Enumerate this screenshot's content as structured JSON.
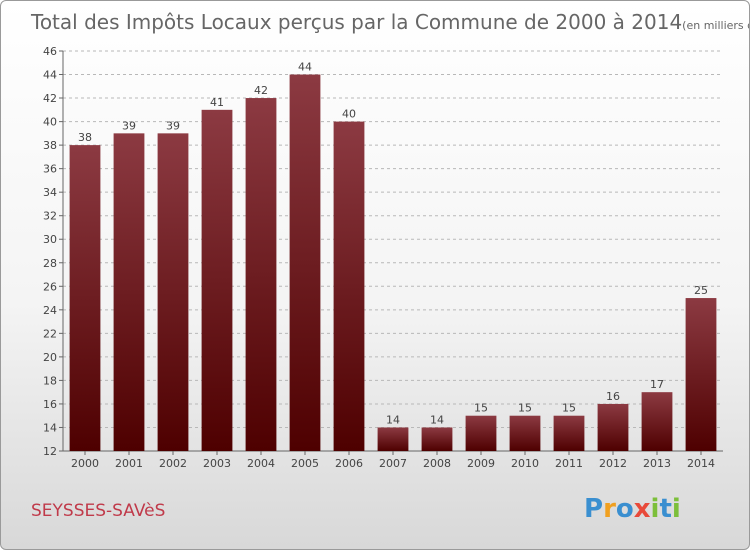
{
  "chart_data": {
    "type": "bar",
    "title": "Total des Impôts Locaux perçus par la Commune de 2000 à 2014",
    "subtitle": "(en milliers d'€)",
    "categories": [
      "2000",
      "2001",
      "2002",
      "2003",
      "2004",
      "2005",
      "2006",
      "2007",
      "2008",
      "2009",
      "2010",
      "2011",
      "2012",
      "2013",
      "2014"
    ],
    "values": [
      38,
      39,
      39,
      41,
      42,
      44,
      40,
      14,
      14,
      15,
      15,
      15,
      16,
      17,
      25
    ],
    "ylim": [
      12,
      46
    ],
    "yticks": [
      12,
      14,
      16,
      18,
      20,
      22,
      24,
      26,
      28,
      30,
      32,
      34,
      36,
      38,
      40,
      42,
      44,
      46
    ],
    "grid": "horizontal-dashed",
    "legend": "none"
  },
  "commune": "SEYSSES-SAVèS",
  "logo": {
    "text": "Proxiti",
    "letters": [
      "P",
      "r",
      "o",
      "x",
      "i",
      "t",
      "i"
    ],
    "colors": [
      "#3a8fd0",
      "#f0a020",
      "#3a8fd0",
      "#e84a3a",
      "#7cbf3a",
      "#3a8fd0",
      "#7cbf3a"
    ]
  },
  "colors": {
    "bar_top": "#8c3a42",
    "bar_bottom": "#4e0000",
    "title": "#666666",
    "commune": "#c03a4a"
  }
}
